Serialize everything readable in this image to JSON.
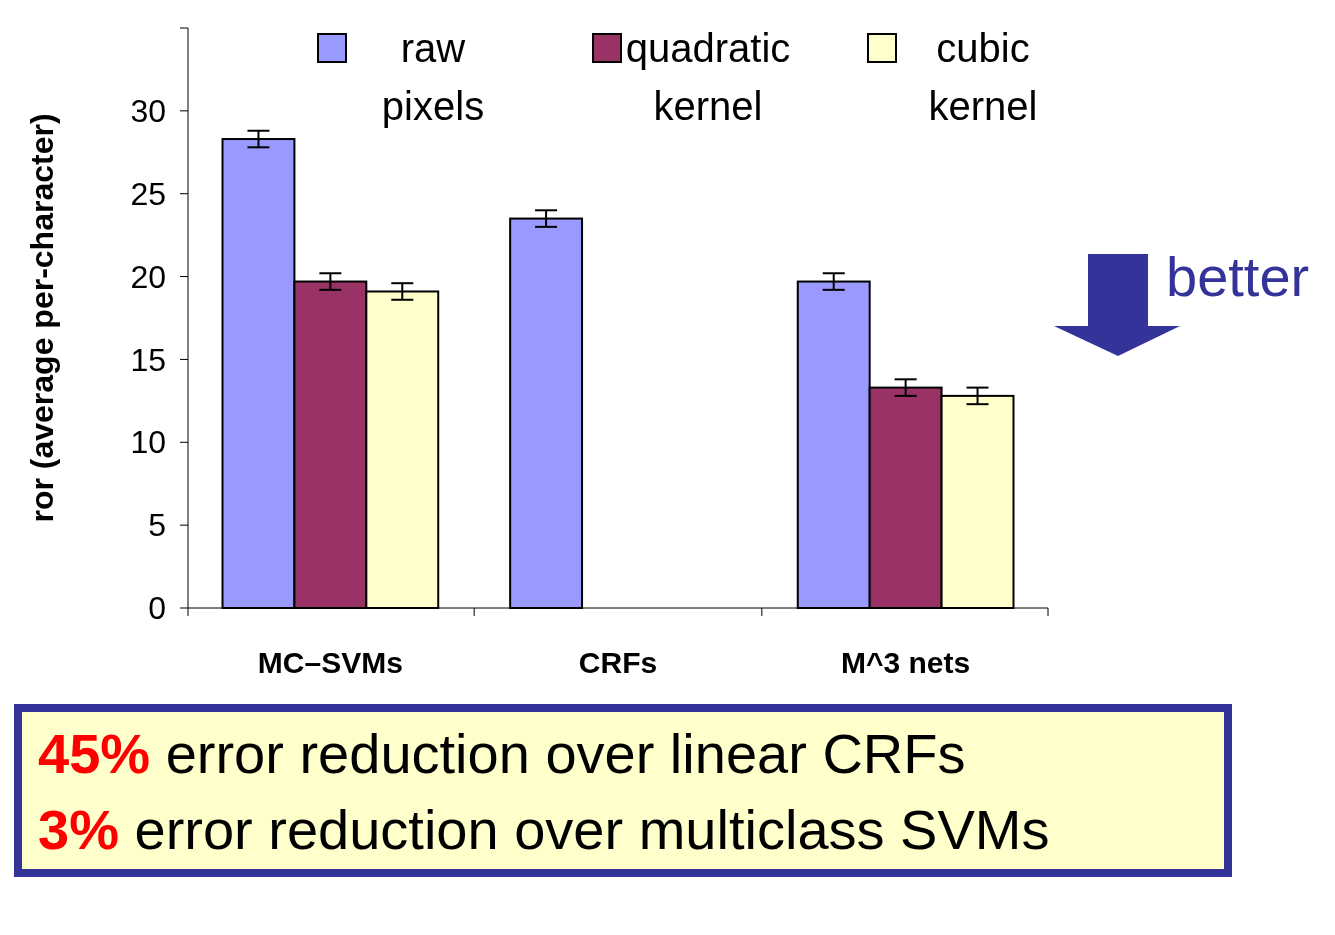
{
  "chart_data": {
    "type": "bar",
    "ylabel": "ror (average per-character)",
    "categories": [
      "MC–SVMs",
      "CRFs",
      "M^3 nets"
    ],
    "series": [
      {
        "name": "raw pixels",
        "color": "#9999ff",
        "values": [
          28.3,
          23.5,
          19.7
        ],
        "errors": [
          0.5,
          0.5,
          0.5
        ]
      },
      {
        "name": "quadratic kernel",
        "color": "#993366",
        "values": [
          19.7,
          null,
          13.3
        ],
        "errors": [
          0.5,
          null,
          0.5
        ]
      },
      {
        "name": "cubic kernel",
        "color": "#ffffcc",
        "values": [
          19.1,
          null,
          12.8
        ],
        "errors": [
          0.5,
          null,
          0.5
        ]
      }
    ],
    "ylim": [
      0,
      35
    ],
    "yticks": [
      0,
      5,
      10,
      15,
      20,
      25,
      30
    ],
    "legend": "top",
    "grid": false,
    "annotations": [
      "45% error reduction over linear CRFs",
      "3% error reduction over multiclass SVMs",
      "better"
    ]
  }
}
